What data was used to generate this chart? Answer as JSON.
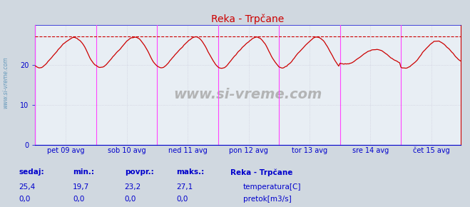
{
  "title": "Reka - Trpčane",
  "title_color": "#cc0000",
  "bg_color": "#d0d8e0",
  "plot_bg_color": "#e8eef4",
  "grid_color": "#c8c8d8",
  "line_color": "#cc0000",
  "dashed_line_color": "#cc0000",
  "vline_color": "#ff44ff",
  "hline_y": 27.1,
  "y_min": 0,
  "y_max": 30,
  "y_ticks": [
    0,
    10,
    20
  ],
  "x_labels": [
    "pet 09 avg",
    "sob 10 avg",
    "ned 11 avg",
    "pon 12 avg",
    "tor 13 avg",
    "sre 14 avg",
    "čet 15 avg"
  ],
  "n_points": 336,
  "watermark": "www.si-vreme.com",
  "sidebar_text": "www.si-vreme.com",
  "sedaj": "25,4",
  "min_val": "19,7",
  "povpr": "23,2",
  "maks": "27,1",
  "sedaj2": "0,0",
  "min_val2": "0,0",
  "povpr2": "0,0",
  "maks2": "0,0",
  "legend_title": "Reka - Trpčane",
  "legend_items": [
    "temperatura[C]",
    "pretok[m3/s]"
  ],
  "legend_colors": [
    "#cc0000",
    "#00bb00"
  ],
  "info_color": "#0000cc",
  "label_color": "#0000cc",
  "axis_color": "#0000cc",
  "spine_color": "#cc0000"
}
